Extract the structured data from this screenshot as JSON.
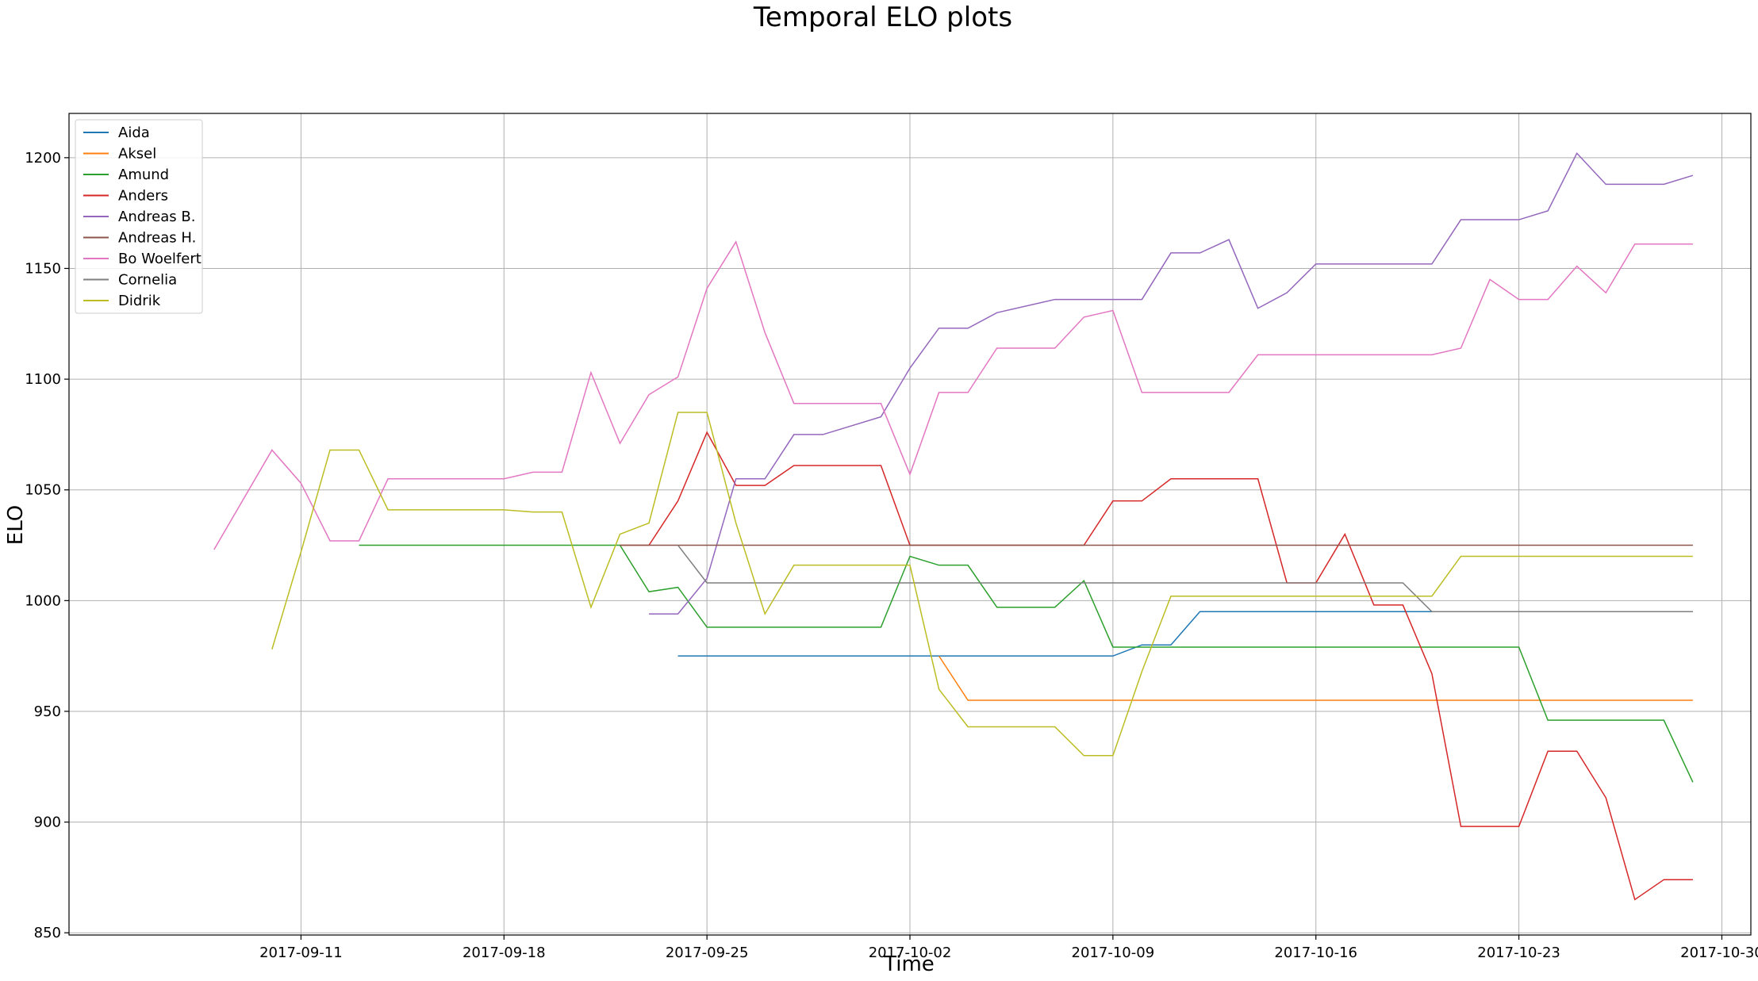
{
  "chart_data": {
    "type": "line",
    "title": "Temporal ELO plots",
    "xlabel": "Time",
    "ylabel": "ELO",
    "x_axis_type": "date",
    "xlim": [
      "2017-09-03",
      "2017-10-31"
    ],
    "ylim": [
      849,
      1220
    ],
    "x_ticks": [
      "2017-09-11",
      "2017-09-18",
      "2017-09-25",
      "2017-10-02",
      "2017-10-09",
      "2017-10-16",
      "2017-10-23",
      "2017-10-30"
    ],
    "y_ticks": [
      850,
      900,
      950,
      1000,
      1050,
      1100,
      1150,
      1200
    ],
    "grid": true,
    "legend_position": "upper-left",
    "series": [
      {
        "name": "Aida",
        "color": "#1f77b4",
        "points": [
          [
            "2017-09-24",
            975
          ],
          [
            "2017-10-09",
            975
          ],
          [
            "2017-10-10",
            980
          ],
          [
            "2017-10-11",
            980
          ],
          [
            "2017-10-12",
            995
          ],
          [
            "2017-10-29",
            995
          ]
        ]
      },
      {
        "name": "Aksel",
        "color": "#ff7f0e",
        "points": [
          [
            "2017-10-03",
            975
          ],
          [
            "2017-10-04",
            955
          ],
          [
            "2017-10-29",
            955
          ]
        ]
      },
      {
        "name": "Amund",
        "color": "#2ca02c",
        "points": [
          [
            "2017-09-13",
            1025
          ],
          [
            "2017-09-22",
            1025
          ],
          [
            "2017-09-23",
            1004
          ],
          [
            "2017-09-24",
            1006
          ],
          [
            "2017-09-25",
            988
          ],
          [
            "2017-10-01",
            988
          ],
          [
            "2017-10-02",
            1020
          ],
          [
            "2017-10-03",
            1016
          ],
          [
            "2017-10-04",
            1016
          ],
          [
            "2017-10-05",
            997
          ],
          [
            "2017-10-07",
            997
          ],
          [
            "2017-10-08",
            1009
          ],
          [
            "2017-10-09",
            979
          ],
          [
            "2017-10-23",
            979
          ],
          [
            "2017-10-24",
            946
          ],
          [
            "2017-10-28",
            946
          ],
          [
            "2017-10-29",
            918
          ]
        ]
      },
      {
        "name": "Anders",
        "color": "#d62728",
        "points": [
          [
            "2017-09-22",
            1025
          ],
          [
            "2017-09-23",
            1025
          ],
          [
            "2017-09-24",
            1045
          ],
          [
            "2017-09-25",
            1076
          ],
          [
            "2017-09-26",
            1052
          ],
          [
            "2017-09-27",
            1052
          ],
          [
            "2017-09-28",
            1061
          ],
          [
            "2017-10-01",
            1061
          ],
          [
            "2017-10-02",
            1025
          ],
          [
            "2017-10-08",
            1025
          ],
          [
            "2017-10-09",
            1045
          ],
          [
            "2017-10-10",
            1045
          ],
          [
            "2017-10-11",
            1055
          ],
          [
            "2017-10-14",
            1055
          ],
          [
            "2017-10-15",
            1008
          ],
          [
            "2017-10-16",
            1008
          ],
          [
            "2017-10-17",
            1030
          ],
          [
            "2017-10-18",
            998
          ],
          [
            "2017-10-19",
            998
          ],
          [
            "2017-10-20",
            967
          ],
          [
            "2017-10-21",
            898
          ],
          [
            "2017-10-23",
            898
          ],
          [
            "2017-10-24",
            932
          ],
          [
            "2017-10-25",
            932
          ],
          [
            "2017-10-26",
            911
          ],
          [
            "2017-10-27",
            865
          ],
          [
            "2017-10-28",
            874
          ],
          [
            "2017-10-29",
            874
          ]
        ]
      },
      {
        "name": "Andreas B.",
        "color": "#9467bd",
        "points": [
          [
            "2017-09-23",
            994
          ],
          [
            "2017-09-24",
            994
          ],
          [
            "2017-09-25",
            1010
          ],
          [
            "2017-09-26",
            1055
          ],
          [
            "2017-09-27",
            1055
          ],
          [
            "2017-09-28",
            1075
          ],
          [
            "2017-09-29",
            1075
          ],
          [
            "2017-10-01",
            1083
          ],
          [
            "2017-10-02",
            1105
          ],
          [
            "2017-10-03",
            1123
          ],
          [
            "2017-10-04",
            1123
          ],
          [
            "2017-10-05",
            1130
          ],
          [
            "2017-10-07",
            1136
          ],
          [
            "2017-10-10",
            1136
          ],
          [
            "2017-10-11",
            1157
          ],
          [
            "2017-10-12",
            1157
          ],
          [
            "2017-10-13",
            1163
          ],
          [
            "2017-10-14",
            1132
          ],
          [
            "2017-10-15",
            1139
          ],
          [
            "2017-10-16",
            1152
          ],
          [
            "2017-10-20",
            1152
          ],
          [
            "2017-10-21",
            1172
          ],
          [
            "2017-10-23",
            1172
          ],
          [
            "2017-10-24",
            1176
          ],
          [
            "2017-10-25",
            1202
          ],
          [
            "2017-10-26",
            1188
          ],
          [
            "2017-10-28",
            1188
          ],
          [
            "2017-10-29",
            1192
          ]
        ]
      },
      {
        "name": "Andreas H.",
        "color": "#8c564b",
        "points": [
          [
            "2017-09-22",
            1025
          ],
          [
            "2017-10-29",
            1025
          ]
        ]
      },
      {
        "name": "Bo Woelfert",
        "color": "#e377c2",
        "points": [
          [
            "2017-09-08",
            1023
          ],
          [
            "2017-09-10",
            1068
          ],
          [
            "2017-09-11",
            1053
          ],
          [
            "2017-09-12",
            1027
          ],
          [
            "2017-09-13",
            1027
          ],
          [
            "2017-09-14",
            1055
          ],
          [
            "2017-09-18",
            1055
          ],
          [
            "2017-09-19",
            1058
          ],
          [
            "2017-09-20",
            1058
          ],
          [
            "2017-09-21",
            1103
          ],
          [
            "2017-09-22",
            1071
          ],
          [
            "2017-09-23",
            1093
          ],
          [
            "2017-09-24",
            1101
          ],
          [
            "2017-09-25",
            1141
          ],
          [
            "2017-09-26",
            1162
          ],
          [
            "2017-09-27",
            1121
          ],
          [
            "2017-09-28",
            1089
          ],
          [
            "2017-10-01",
            1089
          ],
          [
            "2017-10-02",
            1057
          ],
          [
            "2017-10-03",
            1094
          ],
          [
            "2017-10-04",
            1094
          ],
          [
            "2017-10-05",
            1114
          ],
          [
            "2017-10-07",
            1114
          ],
          [
            "2017-10-08",
            1128
          ],
          [
            "2017-10-09",
            1131
          ],
          [
            "2017-10-10",
            1094
          ],
          [
            "2017-10-13",
            1094
          ],
          [
            "2017-10-14",
            1111
          ],
          [
            "2017-10-20",
            1111
          ],
          [
            "2017-10-21",
            1114
          ],
          [
            "2017-10-22",
            1145
          ],
          [
            "2017-10-23",
            1136
          ],
          [
            "2017-10-24",
            1136
          ],
          [
            "2017-10-25",
            1151
          ],
          [
            "2017-10-26",
            1139
          ],
          [
            "2017-10-27",
            1161
          ],
          [
            "2017-10-29",
            1161
          ]
        ]
      },
      {
        "name": "Cornelia",
        "color": "#7f7f7f",
        "points": [
          [
            "2017-09-24",
            1025
          ],
          [
            "2017-09-25",
            1008
          ],
          [
            "2017-10-19",
            1008
          ],
          [
            "2017-10-20",
            995
          ],
          [
            "2017-10-29",
            995
          ]
        ]
      },
      {
        "name": "Didrik",
        "color": "#bcbd22",
        "points": [
          [
            "2017-09-10",
            978
          ],
          [
            "2017-09-11",
            1022
          ],
          [
            "2017-09-12",
            1068
          ],
          [
            "2017-09-13",
            1068
          ],
          [
            "2017-09-14",
            1041
          ],
          [
            "2017-09-18",
            1041
          ],
          [
            "2017-09-19",
            1040
          ],
          [
            "2017-09-20",
            1040
          ],
          [
            "2017-09-21",
            997
          ],
          [
            "2017-09-22",
            1030
          ],
          [
            "2017-09-23",
            1035
          ],
          [
            "2017-09-24",
            1085
          ],
          [
            "2017-09-25",
            1085
          ],
          [
            "2017-09-26",
            1035
          ],
          [
            "2017-09-27",
            994
          ],
          [
            "2017-09-28",
            1016
          ],
          [
            "2017-10-02",
            1016
          ],
          [
            "2017-10-03",
            960
          ],
          [
            "2017-10-04",
            943
          ],
          [
            "2017-10-07",
            943
          ],
          [
            "2017-10-08",
            930
          ],
          [
            "2017-10-09",
            930
          ],
          [
            "2017-10-10",
            968
          ],
          [
            "2017-10-11",
            1002
          ],
          [
            "2017-10-20",
            1002
          ],
          [
            "2017-10-21",
            1020
          ],
          [
            "2017-10-29",
            1020
          ]
        ]
      }
    ]
  }
}
